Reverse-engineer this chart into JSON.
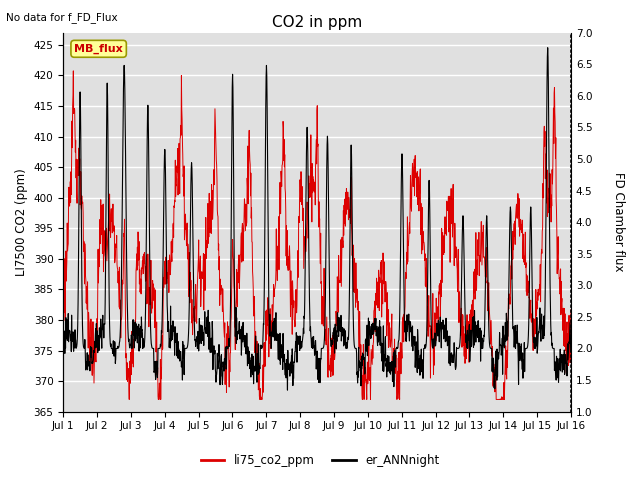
{
  "title": "CO2 in ppm",
  "top_left_text": "No data for f_FD_Flux",
  "ylabel_left": "LI7500 CO2 (ppm)",
  "ylabel_right": "FD Chamber flux",
  "ylim_left": [
    365,
    427
  ],
  "ylim_right": [
    1.0,
    7.0
  ],
  "yticks_left": [
    365,
    370,
    375,
    380,
    385,
    390,
    395,
    400,
    405,
    410,
    415,
    420,
    425
  ],
  "yticks_right": [
    1.0,
    1.5,
    2.0,
    2.5,
    3.0,
    3.5,
    4.0,
    4.5,
    5.0,
    5.5,
    6.0,
    6.5,
    7.0
  ],
  "xtick_labels": [
    "Jul 1",
    "Jul 2",
    "Jul 3",
    "Jul 4",
    "Jul 5",
    "Jul 6",
    "Jul 7",
    "Jul 8",
    "Jul 9",
    "Jul 10",
    "Jul 11",
    "Jul 12",
    "Jul 13",
    "Jul 14",
    "Jul 15",
    "Jul 16"
  ],
  "legend_entries": [
    "li75_co2_ppm",
    "er_ANNnight"
  ],
  "legend_colors": [
    "#dd0000",
    "#000000"
  ],
  "mb_flux_label": "MB_flux",
  "background_color": "#e0e0e0",
  "line_color_red": "#dd0000",
  "line_color_black": "#000000",
  "grid_color": "#ffffff"
}
